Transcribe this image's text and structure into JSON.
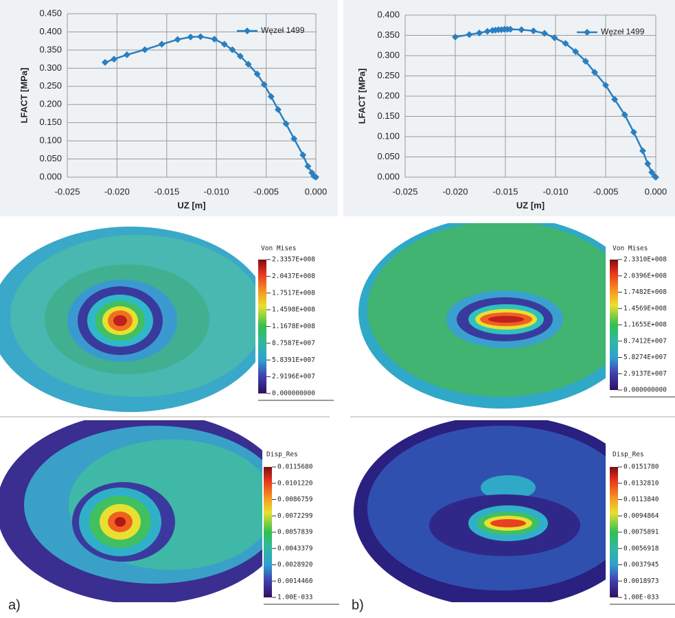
{
  "chart_data": [
    {
      "type": "line",
      "xlabel": "UZ [m]",
      "ylabel": "LFACT [MPa]",
      "legend": "upper right",
      "grid": true,
      "xlim": [
        -0.025,
        0
      ],
      "ylim": [
        0,
        0.45
      ],
      "xticks": [
        {
          "value": -0.025,
          "label": "-0.025"
        },
        {
          "value": -0.02,
          "label": "-0.020"
        },
        {
          "value": -0.015,
          "label": "-0.015"
        },
        {
          "value": -0.01,
          "label": "-0.010"
        },
        {
          "value": -0.005,
          "label": "-0.005"
        },
        {
          "value": 0,
          "label": "0.000"
        }
      ],
      "yticks": [
        {
          "value": 0,
          "label": "0.000"
        },
        {
          "value": 0.05,
          "label": "0.050"
        },
        {
          "value": 0.1,
          "label": "0.100"
        },
        {
          "value": 0.15,
          "label": "0.150"
        },
        {
          "value": 0.2,
          "label": "0.200"
        },
        {
          "value": 0.25,
          "label": "0.250"
        },
        {
          "value": 0.3,
          "label": "0.300"
        },
        {
          "value": 0.35,
          "label": "0.350"
        },
        {
          "value": 0.4,
          "label": "0.400"
        },
        {
          "value": 0.45,
          "label": "0.450"
        }
      ],
      "x": [
        -0.0212,
        -0.0203,
        -0.019,
        -0.0172,
        -0.0155,
        -0.0139,
        -0.0126,
        -0.0116,
        -0.0102,
        -0.0092,
        -0.0084,
        -0.0076,
        -0.0068,
        -0.0059,
        -0.0052,
        -0.0045,
        -0.0038,
        -0.003,
        -0.0022,
        -0.0013,
        -0.0008,
        -0.0004,
        -0.0002,
        0
      ],
      "series": [
        {
          "name": "Węzeł 1499",
          "color": "#2a7fc0",
          "values": [
            0.316,
            0.325,
            0.337,
            0.351,
            0.366,
            0.379,
            0.386,
            0.387,
            0.38,
            0.366,
            0.351,
            0.333,
            0.311,
            0.284,
            0.255,
            0.222,
            0.186,
            0.147,
            0.106,
            0.061,
            0.03,
            0.012,
            0.003,
            0
          ]
        }
      ]
    },
    {
      "type": "line",
      "xlabel": "UZ [m]",
      "ylabel": "LFACT [MPa]",
      "legend": "upper right",
      "grid": true,
      "xlim": [
        -0.025,
        0
      ],
      "ylim": [
        0,
        0.4
      ],
      "xticks": [
        {
          "value": -0.025,
          "label": "-0.025"
        },
        {
          "value": -0.02,
          "label": "-0.020"
        },
        {
          "value": -0.015,
          "label": "-0.015"
        },
        {
          "value": -0.01,
          "label": "-0.010"
        },
        {
          "value": -0.005,
          "label": "-0.005"
        },
        {
          "value": 0,
          "label": "0.000"
        }
      ],
      "yticks": [
        {
          "value": 0,
          "label": "0.000"
        },
        {
          "value": 0.05,
          "label": "0.050"
        },
        {
          "value": 0.1,
          "label": "0.100"
        },
        {
          "value": 0.15,
          "label": "0.150"
        },
        {
          "value": 0.2,
          "label": "0.200"
        },
        {
          "value": 0.25,
          "label": "0.250"
        },
        {
          "value": 0.3,
          "label": "0.300"
        },
        {
          "value": 0.35,
          "label": "0.350"
        },
        {
          "value": 0.4,
          "label": "0.400"
        }
      ],
      "x": [
        -0.02,
        -0.0186,
        -0.0176,
        -0.0168,
        -0.0163,
        -0.016,
        -0.0157,
        -0.0154,
        -0.0151,
        -0.0148,
        -0.0145,
        -0.0134,
        -0.0122,
        -0.0111,
        -0.0101,
        -0.009,
        -0.008,
        -0.007,
        -0.0061,
        -0.005,
        -0.0041,
        -0.0031,
        -0.0022,
        -0.0013,
        -0.0008,
        -0.0004,
        -0.0001,
        0
      ],
      "series": [
        {
          "name": "Węzeł 1499",
          "color": "#2a7fc0",
          "values": [
            0.346,
            0.352,
            0.356,
            0.36,
            0.362,
            0.363,
            0.364,
            0.364,
            0.365,
            0.365,
            0.365,
            0.364,
            0.361,
            0.355,
            0.344,
            0.33,
            0.31,
            0.286,
            0.259,
            0.227,
            0.192,
            0.154,
            0.111,
            0.065,
            0.033,
            0.012,
            0.002,
            0
          ]
        }
      ]
    }
  ],
  "panels": [
    {
      "legend_title": "Von Mises",
      "labels": [
        "2.3357E+008",
        "2.0437E+008",
        "1.7517E+008",
        "1.4598E+008",
        "1.1678E+008",
        "8.7587E+007",
        "5.8391E+007",
        "2.9196E+007",
        "0.000000000"
      ]
    },
    {
      "legend_title": "Von Mises",
      "labels": [
        "2.3310E+008",
        "2.0396E+008",
        "1.7482E+008",
        "1.4569E+008",
        "1.1655E+008",
        "8.7412E+007",
        "5.8274E+007",
        "2.9137E+007",
        "0.000000000"
      ]
    },
    {
      "legend_title": "Disp_Res",
      "labels": [
        "0.0115680",
        "0.0101220",
        "0.0086759",
        "0.0072299",
        "0.0057839",
        "0.0043379",
        "0.0028920",
        "0.0014460",
        "1.00E-033"
      ]
    },
    {
      "legend_title": "Disp_Res",
      "labels": [
        "0.0151780",
        "0.0132810",
        "0.0113840",
        "0.0094864",
        "0.0075891",
        "0.0056918",
        "0.0037945",
        "0.0018973",
        "1.00E-033"
      ]
    }
  ],
  "panel_labels": [
    "a)",
    "b)"
  ]
}
